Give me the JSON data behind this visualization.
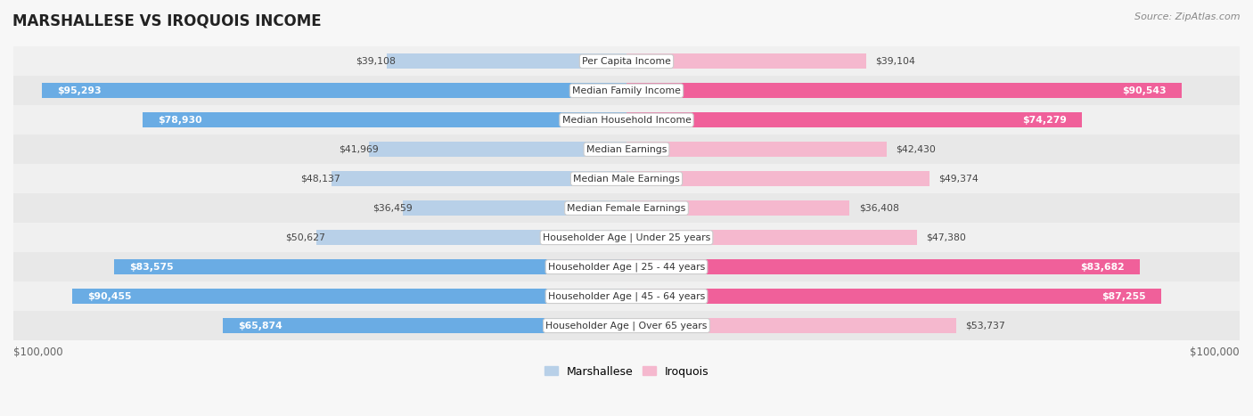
{
  "title": "MARSHALLESE VS IROQUOIS INCOME",
  "source": "Source: ZipAtlas.com",
  "max_value": 100000,
  "categories": [
    "Per Capita Income",
    "Median Family Income",
    "Median Household Income",
    "Median Earnings",
    "Median Male Earnings",
    "Median Female Earnings",
    "Householder Age | Under 25 years",
    "Householder Age | 25 - 44 years",
    "Householder Age | 45 - 64 years",
    "Householder Age | Over 65 years"
  ],
  "marshallese_values": [
    39108,
    95293,
    78930,
    41969,
    48137,
    36459,
    50627,
    83575,
    90455,
    65874
  ],
  "iroquois_values": [
    39104,
    90543,
    74279,
    42430,
    49374,
    36408,
    47380,
    83682,
    87255,
    53737
  ],
  "marshallese_labels": [
    "$39,108",
    "$95,293",
    "$78,930",
    "$41,969",
    "$48,137",
    "$36,459",
    "$50,627",
    "$83,575",
    "$90,455",
    "$65,874"
  ],
  "iroquois_labels": [
    "$39,104",
    "$90,543",
    "$74,279",
    "$42,430",
    "$49,374",
    "$36,408",
    "$47,380",
    "$83,682",
    "$87,255",
    "$53,737"
  ],
  "blue_light": "#b8d0e8",
  "blue_dark": "#6aace4",
  "pink_light": "#f5b8ce",
  "pink_dark": "#f0609a",
  "bg_color": "#f7f7f7",
  "row_colors": [
    "#f0f0f0",
    "#e8e8e8"
  ],
  "bar_height": 0.52,
  "label_threshold": 65000,
  "legend_blue": "Marshallese",
  "legend_pink": "Iroquois",
  "xlabel_left": "$100,000",
  "xlabel_right": "$100,000"
}
